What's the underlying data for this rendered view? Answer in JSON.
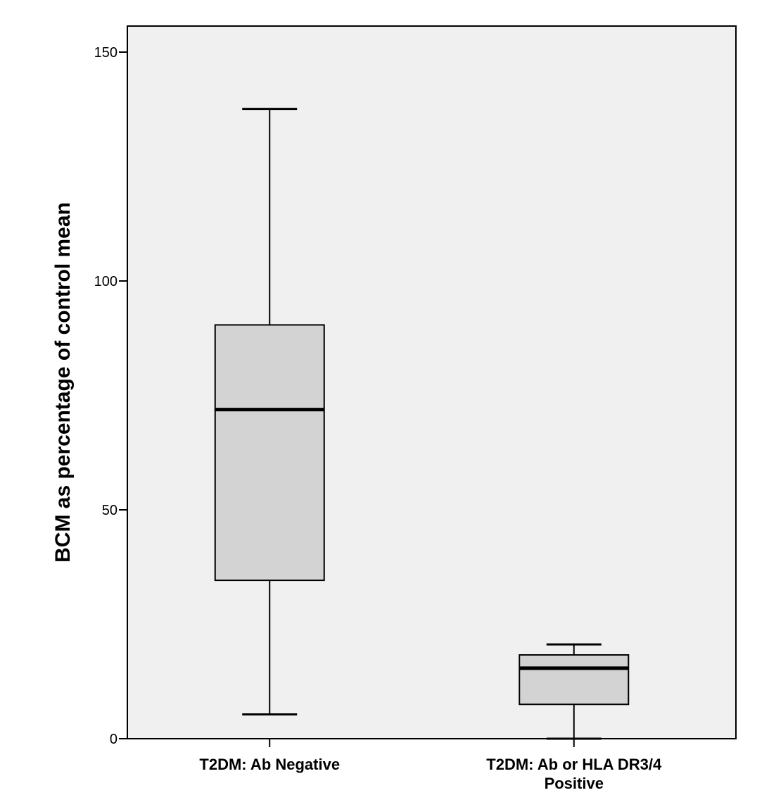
{
  "chart_data": {
    "type": "boxplot",
    "ylabel": "BCM as percentage of control mean",
    "xlabel": "",
    "ylim": [
      0,
      150
    ],
    "yticks": [
      0,
      50,
      100,
      150
    ],
    "grid": false,
    "colors": {
      "plot_bg": "#f0f0f0",
      "box_fill": "#d3d3d3",
      "stroke": "#000000"
    },
    "categories": [
      [
        "T2DM: Ab Negative"
      ],
      [
        "T2DM: Ab or HLA DR3/4",
        "Positive"
      ]
    ],
    "series": [
      {
        "min": 5.3,
        "q1": 34.6,
        "median": 71.9,
        "q3": 90.4,
        "max": 137.6
      },
      {
        "min": 0.0,
        "q1": 7.5,
        "median": 15.4,
        "q3": 18.3,
        "max": 20.6
      }
    ]
  }
}
